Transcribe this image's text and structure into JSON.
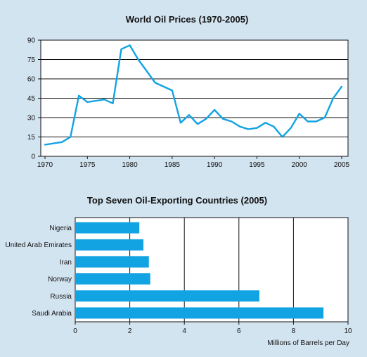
{
  "colors": {
    "background": "#d3e4f1",
    "plot_background": "#ffffff",
    "series": "#12a3e3",
    "grid": "#111111"
  },
  "chart_data": [
    {
      "type": "line",
      "title": "World Oil Prices (1970-2005)",
      "xlabel": "",
      "ylabel": "",
      "xlim": [
        1970,
        2005
      ],
      "ylim": [
        0,
        90
      ],
      "xticks": [
        1970,
        1975,
        1980,
        1985,
        1990,
        1995,
        2000,
        2005
      ],
      "yticks": [
        0,
        15,
        30,
        45,
        60,
        75,
        90
      ],
      "grid": "horizontal",
      "series": [
        {
          "x": [
            1970,
            1972,
            1973,
            1974,
            1975,
            1977,
            1978,
            1979,
            1980,
            1981,
            1982,
            1983,
            1984,
            1985,
            1986,
            1987,
            1988,
            1989,
            1990,
            1991,
            1992,
            1993,
            1994,
            1995,
            1996,
            1997,
            1998,
            1999,
            2000,
            2001,
            2002,
            2003,
            2004,
            2005
          ],
          "values": [
            9,
            11,
            15,
            47,
            42,
            44,
            41,
            83,
            86,
            75,
            66,
            57,
            54,
            51,
            26,
            32,
            25,
            29,
            36,
            29,
            27,
            23,
            21,
            22,
            26,
            23,
            15,
            22,
            33,
            27,
            27,
            30,
            45,
            54
          ]
        }
      ]
    },
    {
      "type": "bar",
      "orientation": "horizontal",
      "title": "Top Seven Oil-Exporting Countries (2005)",
      "xlabel": "Millions of Barrels per Day",
      "ylabel": "",
      "xlim": [
        0,
        10
      ],
      "xticks": [
        0,
        2,
        4,
        6,
        8,
        10
      ],
      "grid": "vertical",
      "categories": [
        "Nigeria",
        "United Arab Emirates",
        "Iran",
        "Norway",
        "Russia",
        "Saudi Arabia"
      ],
      "values": [
        2.35,
        2.5,
        2.7,
        2.75,
        6.75,
        9.1
      ]
    }
  ]
}
